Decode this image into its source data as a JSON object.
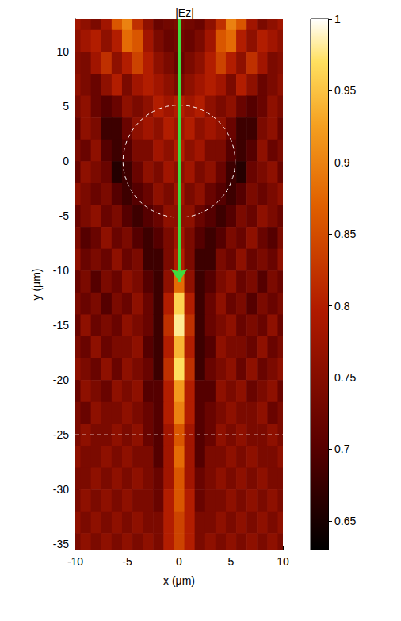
{
  "chart_data": {
    "type": "heatmap",
    "title": "|Ez|",
    "x_label": "x (μm)",
    "y_label": "y (μm)",
    "xlim": [
      -10,
      10
    ],
    "xticks": [
      -10,
      -5,
      0,
      5,
      10
    ],
    "ylim": [
      -35.5,
      13
    ],
    "yticks": [
      -35,
      -30,
      -25,
      -20,
      -15,
      -10,
      -5,
      0,
      5,
      10
    ],
    "grid": false,
    "cells": {
      "x": [
        -10,
        -9,
        -8,
        -7,
        -6,
        -5,
        -4,
        -3,
        -2,
        -1,
        0,
        1,
        2,
        3,
        4,
        5,
        6,
        7,
        8,
        9,
        10
      ],
      "y": [
        13,
        11,
        9,
        7,
        5,
        3,
        1,
        -1,
        -3,
        -5,
        -7,
        -9,
        -11,
        -13,
        -15,
        -17,
        -19,
        -21,
        -23,
        -25,
        -27,
        -29,
        -31,
        -33,
        -35
      ],
      "values": [
        [
          0.78,
          0.76,
          0.74,
          0.78,
          0.86,
          0.9,
          0.82,
          0.76,
          0.72,
          0.73,
          0.74,
          0.73,
          0.72,
          0.76,
          0.82,
          0.9,
          0.86,
          0.78,
          0.74,
          0.76,
          0.78
        ],
        [
          0.76,
          0.78,
          0.8,
          0.76,
          0.8,
          0.88,
          0.86,
          0.78,
          0.74,
          0.72,
          0.73,
          0.72,
          0.74,
          0.78,
          0.86,
          0.88,
          0.8,
          0.76,
          0.8,
          0.78,
          0.76
        ],
        [
          0.75,
          0.74,
          0.78,
          0.82,
          0.76,
          0.8,
          0.84,
          0.8,
          0.76,
          0.74,
          0.72,
          0.74,
          0.76,
          0.8,
          0.84,
          0.8,
          0.76,
          0.82,
          0.78,
          0.74,
          0.75
        ],
        [
          0.76,
          0.74,
          0.72,
          0.76,
          0.8,
          0.74,
          0.78,
          0.8,
          0.78,
          0.76,
          0.74,
          0.76,
          0.78,
          0.8,
          0.78,
          0.74,
          0.8,
          0.76,
          0.72,
          0.74,
          0.76
        ],
        [
          0.74,
          0.76,
          0.72,
          0.7,
          0.72,
          0.76,
          0.74,
          0.76,
          0.8,
          0.78,
          0.8,
          0.78,
          0.8,
          0.76,
          0.74,
          0.76,
          0.72,
          0.7,
          0.72,
          0.76,
          0.74
        ],
        [
          0.72,
          0.76,
          0.74,
          0.68,
          0.68,
          0.72,
          0.76,
          0.78,
          0.76,
          0.8,
          0.78,
          0.8,
          0.76,
          0.78,
          0.76,
          0.72,
          0.68,
          0.68,
          0.74,
          0.76,
          0.72
        ],
        [
          0.74,
          0.72,
          0.76,
          0.7,
          0.68,
          0.7,
          0.74,
          0.74,
          0.78,
          0.76,
          0.8,
          0.76,
          0.78,
          0.74,
          0.74,
          0.7,
          0.68,
          0.7,
          0.76,
          0.72,
          0.74
        ],
        [
          0.72,
          0.76,
          0.74,
          0.72,
          0.66,
          0.68,
          0.72,
          0.76,
          0.74,
          0.78,
          0.76,
          0.78,
          0.74,
          0.76,
          0.72,
          0.68,
          0.66,
          0.72,
          0.74,
          0.76,
          0.72
        ],
        [
          0.76,
          0.74,
          0.72,
          0.74,
          0.7,
          0.68,
          0.7,
          0.72,
          0.76,
          0.74,
          0.78,
          0.74,
          0.76,
          0.72,
          0.7,
          0.68,
          0.7,
          0.74,
          0.72,
          0.74,
          0.76
        ],
        [
          0.72,
          0.74,
          0.76,
          0.72,
          0.74,
          0.7,
          0.68,
          0.7,
          0.72,
          0.76,
          0.76,
          0.76,
          0.72,
          0.7,
          0.68,
          0.7,
          0.74,
          0.72,
          0.76,
          0.74,
          0.72
        ],
        [
          0.74,
          0.7,
          0.72,
          0.76,
          0.72,
          0.74,
          0.7,
          0.68,
          0.7,
          0.74,
          0.78,
          0.74,
          0.7,
          0.68,
          0.7,
          0.74,
          0.72,
          0.76,
          0.72,
          0.7,
          0.74
        ],
        [
          0.76,
          0.72,
          0.74,
          0.72,
          0.76,
          0.72,
          0.74,
          0.68,
          0.68,
          0.74,
          0.8,
          0.74,
          0.68,
          0.68,
          0.74,
          0.72,
          0.76,
          0.72,
          0.74,
          0.72,
          0.76
        ],
        [
          0.72,
          0.74,
          0.7,
          0.74,
          0.72,
          0.76,
          0.74,
          0.7,
          0.68,
          0.76,
          0.88,
          0.76,
          0.68,
          0.7,
          0.74,
          0.76,
          0.72,
          0.74,
          0.7,
          0.74,
          0.72
        ],
        [
          0.74,
          0.72,
          0.74,
          0.7,
          0.74,
          0.72,
          0.76,
          0.72,
          0.68,
          0.8,
          0.96,
          0.8,
          0.68,
          0.72,
          0.76,
          0.72,
          0.74,
          0.7,
          0.74,
          0.72,
          0.74
        ],
        [
          0.72,
          0.76,
          0.72,
          0.74,
          0.72,
          0.76,
          0.74,
          0.72,
          0.68,
          0.82,
          0.98,
          0.82,
          0.68,
          0.72,
          0.74,
          0.76,
          0.72,
          0.74,
          0.72,
          0.76,
          0.72
        ],
        [
          0.74,
          0.72,
          0.76,
          0.72,
          0.74,
          0.74,
          0.76,
          0.7,
          0.68,
          0.8,
          0.94,
          0.8,
          0.68,
          0.7,
          0.76,
          0.74,
          0.74,
          0.72,
          0.76,
          0.72,
          0.74
        ],
        [
          0.76,
          0.74,
          0.72,
          0.76,
          0.72,
          0.76,
          0.74,
          0.72,
          0.68,
          0.82,
          0.97,
          0.82,
          0.68,
          0.72,
          0.74,
          0.76,
          0.72,
          0.76,
          0.72,
          0.74,
          0.76
        ],
        [
          0.72,
          0.76,
          0.74,
          0.72,
          0.76,
          0.74,
          0.76,
          0.7,
          0.7,
          0.8,
          0.92,
          0.8,
          0.7,
          0.7,
          0.76,
          0.74,
          0.76,
          0.72,
          0.74,
          0.76,
          0.72
        ],
        [
          0.74,
          0.72,
          0.76,
          0.74,
          0.74,
          0.76,
          0.74,
          0.72,
          0.7,
          0.8,
          0.9,
          0.8,
          0.7,
          0.72,
          0.74,
          0.76,
          0.74,
          0.74,
          0.76,
          0.72,
          0.74
        ],
        [
          0.74,
          0.76,
          0.74,
          0.74,
          0.76,
          0.74,
          0.76,
          0.72,
          0.7,
          0.78,
          0.86,
          0.78,
          0.7,
          0.72,
          0.76,
          0.74,
          0.76,
          0.74,
          0.74,
          0.76,
          0.74
        ],
        [
          0.76,
          0.74,
          0.74,
          0.76,
          0.74,
          0.76,
          0.74,
          0.74,
          0.7,
          0.78,
          0.88,
          0.78,
          0.7,
          0.74,
          0.74,
          0.76,
          0.74,
          0.76,
          0.74,
          0.74,
          0.76
        ],
        [
          0.74,
          0.74,
          0.76,
          0.74,
          0.76,
          0.74,
          0.76,
          0.74,
          0.72,
          0.78,
          0.86,
          0.78,
          0.72,
          0.74,
          0.76,
          0.74,
          0.76,
          0.74,
          0.76,
          0.74,
          0.74
        ],
        [
          0.74,
          0.76,
          0.74,
          0.76,
          0.74,
          0.76,
          0.74,
          0.74,
          0.72,
          0.8,
          0.86,
          0.8,
          0.72,
          0.74,
          0.74,
          0.76,
          0.74,
          0.76,
          0.74,
          0.76,
          0.74
        ],
        [
          0.76,
          0.74,
          0.76,
          0.74,
          0.76,
          0.74,
          0.76,
          0.74,
          0.74,
          0.8,
          0.84,
          0.8,
          0.74,
          0.74,
          0.76,
          0.74,
          0.76,
          0.74,
          0.76,
          0.74,
          0.76
        ],
        [
          0.74,
          0.76,
          0.74,
          0.76,
          0.74,
          0.76,
          0.74,
          0.76,
          0.74,
          0.8,
          0.84,
          0.8,
          0.74,
          0.76,
          0.74,
          0.76,
          0.74,
          0.76,
          0.74,
          0.76,
          0.74
        ]
      ]
    },
    "colorbar": {
      "range": [
        0.63,
        1
      ],
      "ticks": [
        0.65,
        0.7,
        0.75,
        0.8,
        0.85,
        0.9,
        0.95,
        1
      ]
    },
    "circle": {
      "center": [
        0,
        0
      ],
      "radius": 5.4,
      "line_style": "dashed"
    },
    "hline": {
      "y": -25,
      "line_style": "dashed"
    },
    "arrow": {
      "from": [
        0,
        13
      ],
      "to": [
        0,
        -11
      ],
      "color": "#3fdc3f"
    }
  }
}
